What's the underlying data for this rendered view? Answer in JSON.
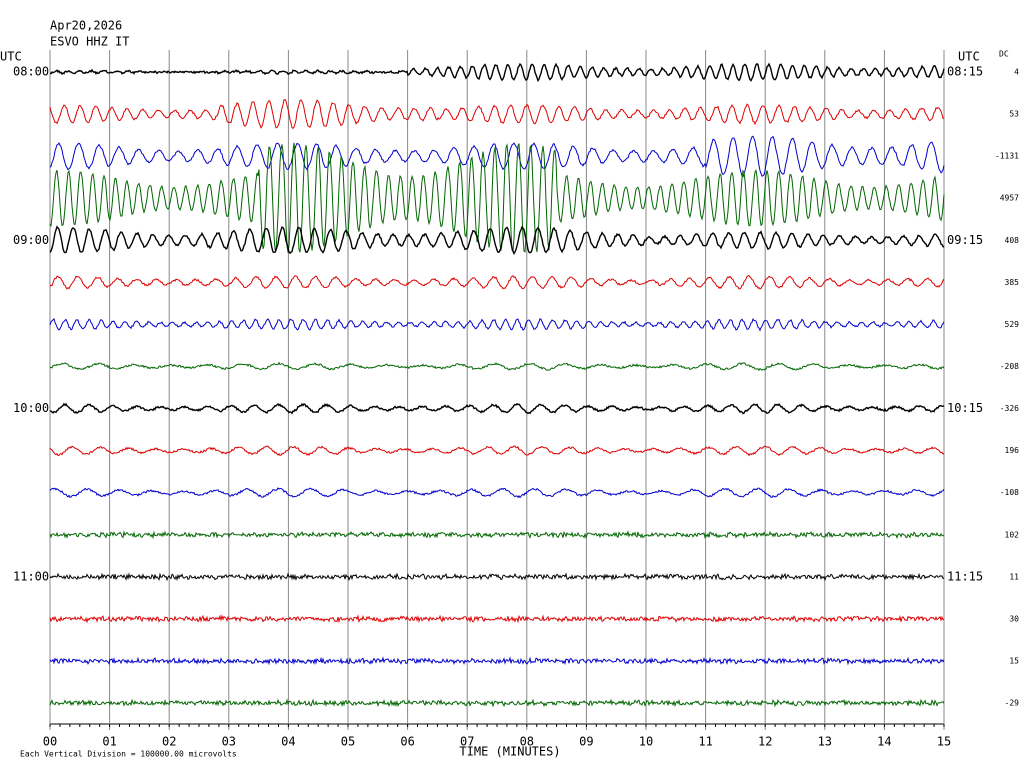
{
  "chart_data": {
    "type": "helicorder",
    "title": "Apr20,2026",
    "subtitle": "ESVO HHZ IT",
    "left_axis_label": "UTC",
    "right_axis_label": "UTC",
    "dc_label": "DC",
    "x_label": "TIME (MINUTES)",
    "footnote": "Each Vertical Division = 100000.00 microvolts",
    "xlim": [
      0,
      15
    ],
    "xticks": [
      {
        "value": 0,
        "label": "00"
      },
      {
        "value": 1,
        "label": "01"
      },
      {
        "value": 2,
        "label": "02"
      },
      {
        "value": 3,
        "label": "03"
      },
      {
        "value": 4,
        "label": "04"
      },
      {
        "value": 5,
        "label": "05"
      },
      {
        "value": 6,
        "label": "06"
      },
      {
        "value": 7,
        "label": "07"
      },
      {
        "value": 8,
        "label": "08"
      },
      {
        "value": 9,
        "label": "09"
      },
      {
        "value": 10,
        "label": "10"
      },
      {
        "value": 11,
        "label": "11"
      },
      {
        "value": 12,
        "label": "12"
      },
      {
        "value": 13,
        "label": "13"
      },
      {
        "value": 14,
        "label": "14"
      },
      {
        "value": 15,
        "label": "15"
      }
    ],
    "rows": [
      {
        "left": "08:00",
        "right": "08:15",
        "dc": 4,
        "color": "#000000"
      },
      {
        "left": null,
        "right": null,
        "dc": 53,
        "color": "#dd0000"
      },
      {
        "left": null,
        "right": null,
        "dc": -1131,
        "color": "#0000cc"
      },
      {
        "left": null,
        "right": null,
        "dc": 4957,
        "color": "#006600"
      },
      {
        "left": "09:00",
        "right": "09:15",
        "dc": 408,
        "color": "#000000"
      },
      {
        "left": null,
        "right": null,
        "dc": 385,
        "color": "#dd0000"
      },
      {
        "left": null,
        "right": null,
        "dc": 529,
        "color": "#0000cc"
      },
      {
        "left": null,
        "right": null,
        "dc": -208,
        "color": "#006600"
      },
      {
        "left": "10:00",
        "right": "10:15",
        "dc": -326,
        "color": "#000000"
      },
      {
        "left": null,
        "right": null,
        "dc": 196,
        "color": "#dd0000"
      },
      {
        "left": null,
        "right": null,
        "dc": -108,
        "color": "#0000cc"
      },
      {
        "left": null,
        "right": null,
        "dc": 102,
        "color": "#006600"
      },
      {
        "left": "11:00",
        "right": "11:15",
        "dc": 11,
        "color": "#000000"
      },
      {
        "left": null,
        "right": null,
        "dc": 30,
        "color": "#dd0000"
      },
      {
        "left": null,
        "right": null,
        "dc": 15,
        "color": "#0000cc"
      },
      {
        "left": null,
        "right": null,
        "dc": -29,
        "color": "#006600"
      }
    ]
  }
}
